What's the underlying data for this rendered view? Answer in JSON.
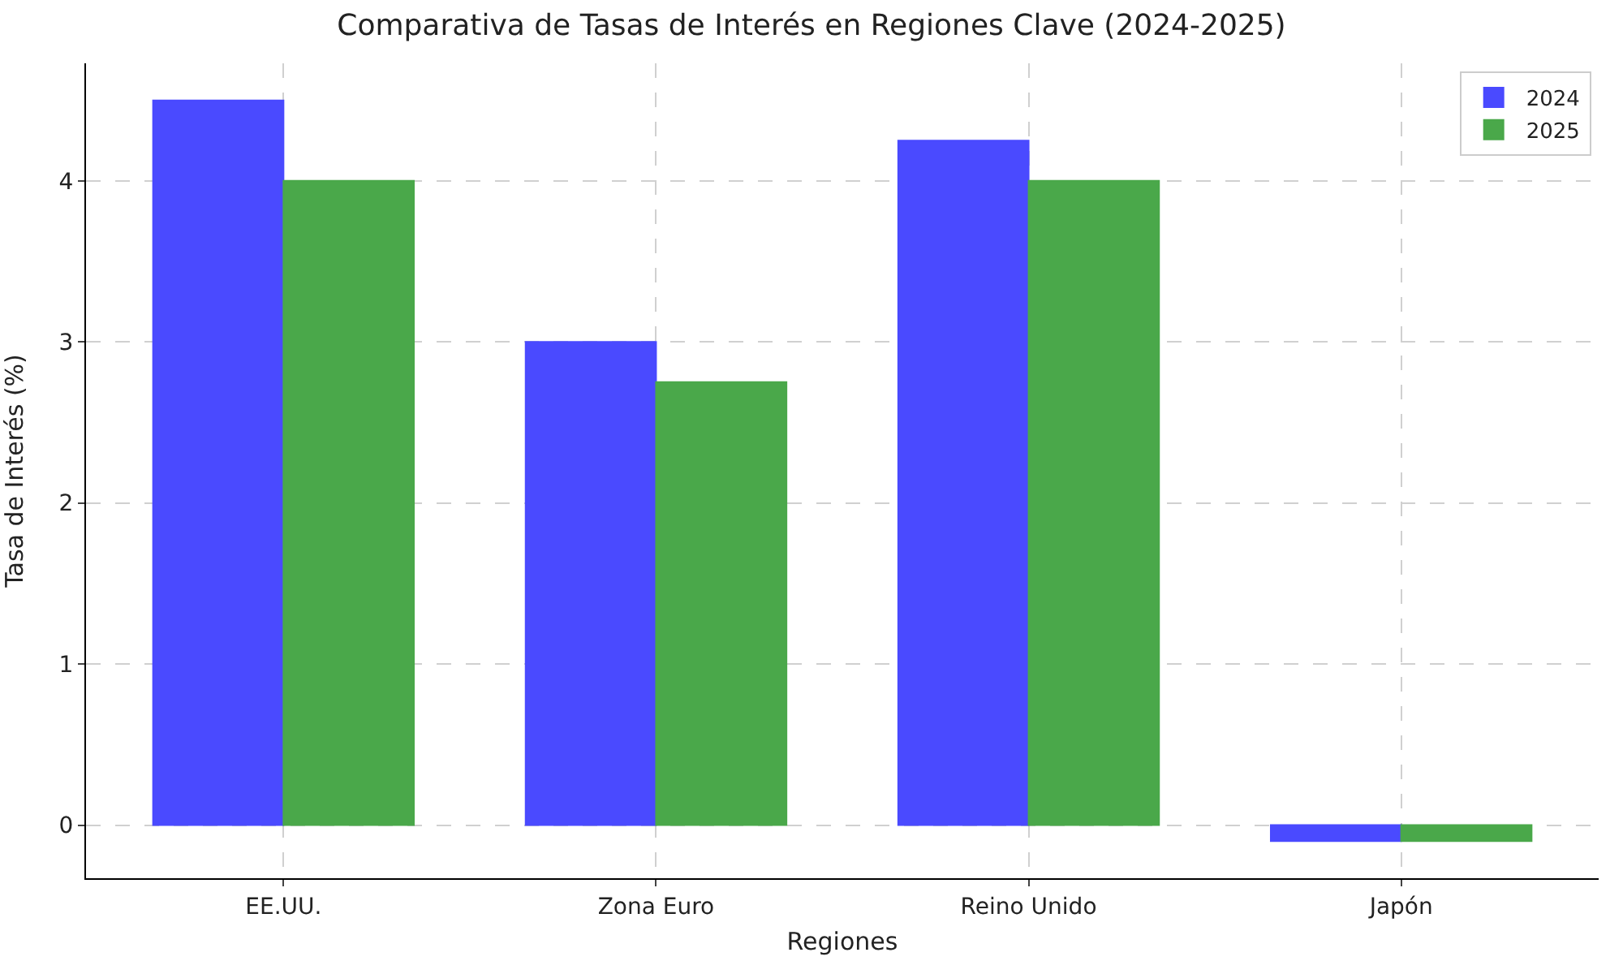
{
  "chart_data": {
    "type": "bar",
    "title": "Comparativa de Tasas de Interés en Regiones Clave (2024-2025)",
    "xlabel": "Regiones",
    "ylabel": "Tasa de Interés (%)",
    "categories": [
      "EE.UU.",
      "Zona Euro",
      "Reino Unido",
      "Japón"
    ],
    "series": [
      {
        "name": "2024",
        "color": "#4a4aff",
        "values": [
          4.5,
          3.0,
          4.25,
          -0.1
        ]
      },
      {
        "name": "2025",
        "color": "#4aa84a",
        "values": [
          4.0,
          2.75,
          4.0,
          -0.1
        ]
      }
    ],
    "ylim": [
      -0.33,
      4.73
    ],
    "yticks": [
      0,
      1,
      2,
      3,
      4
    ],
    "grid": true,
    "legend": "top right"
  }
}
